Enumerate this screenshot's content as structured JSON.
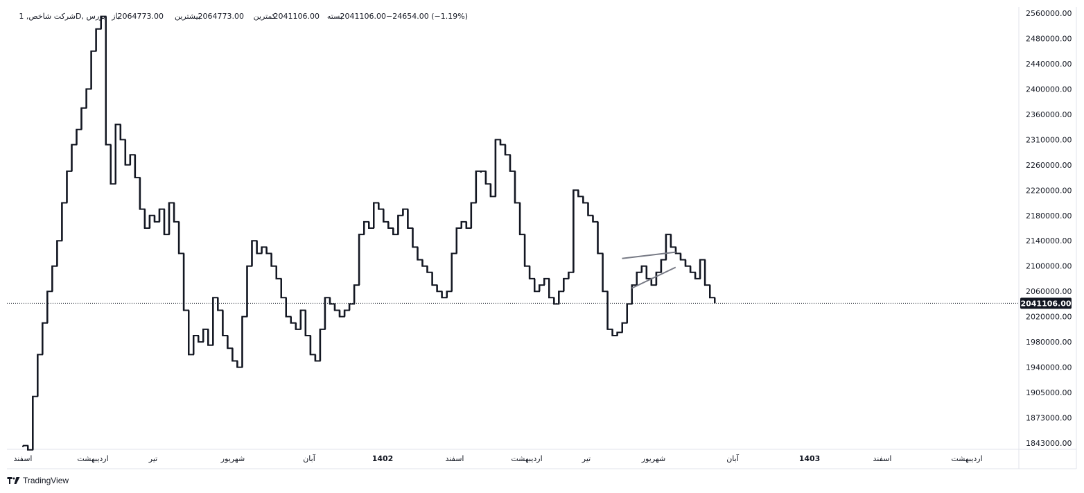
{
  "legend": {
    "symbol": "شرکت شاخص, 1D, بورس",
    "open_label": "باز",
    "open": "2064773.00",
    "high_label": "بیشترین",
    "high": "2064773.00",
    "low_label": "کمترین",
    "low": "2041106.00",
    "close_label": "بسته",
    "close": "2041106.00",
    "change": "−24654.00 (−1.19%)"
  },
  "last_price_label": "2041106.00",
  "brand": {
    "name": "TradingView"
  },
  "colors": {
    "candle": "#131722",
    "trendline": "#787b86",
    "last_price_bg": "#131722",
    "axis_border": "#e0e3eb"
  },
  "chart_data": {
    "type": "line",
    "y_ticks": [
      {
        "value": 1843000,
        "label": "1843000.00"
      },
      {
        "value": 1873000,
        "label": "1873000.00"
      },
      {
        "value": 1905000,
        "label": "1905000.00"
      },
      {
        "value": 1940000,
        "label": "1940000.00"
      },
      {
        "value": 1980000,
        "label": "1980000.00"
      },
      {
        "value": 2020000,
        "label": "2020000.00"
      },
      {
        "value": 2060000,
        "label": "2060000.00"
      },
      {
        "value": 2100000,
        "label": "2100000.00"
      },
      {
        "value": 2140000,
        "label": "2140000.00"
      },
      {
        "value": 2180000,
        "label": "2180000.00"
      },
      {
        "value": 2220000,
        "label": "2220000.00"
      },
      {
        "value": 2260000,
        "label": "2260000.00"
      },
      {
        "value": 2310000,
        "label": "2310000.00"
      },
      {
        "value": 2360000,
        "label": "2360000.00"
      },
      {
        "value": 2400000,
        "label": "2400000.00"
      },
      {
        "value": 2440000,
        "label": "2440000.00"
      },
      {
        "value": 2480000,
        "label": "2480000.00"
      },
      {
        "value": 2560000,
        "label": "2560000.00"
      }
    ],
    "x_labels": [
      {
        "label": "اسفند",
        "bold": false
      },
      {
        "label": "اردیبهشت",
        "bold": false
      },
      {
        "label": "تیر",
        "bold": false
      },
      {
        "label": "شهریور",
        "bold": false
      },
      {
        "label": "آبان",
        "bold": false
      },
      {
        "label": "1402",
        "bold": true
      },
      {
        "label": "اسفند",
        "bold": false
      },
      {
        "label": "اردیبهشت",
        "bold": false
      },
      {
        "label": "تیر",
        "bold": false
      },
      {
        "label": "شهریور",
        "bold": false
      },
      {
        "label": "آبان",
        "bold": false
      },
      {
        "label": "1403",
        "bold": true
      },
      {
        "label": "اسفند",
        "bold": false
      },
      {
        "label": "اردیبهشت",
        "bold": false
      }
    ],
    "last_price": 2041106,
    "price_path": [
      1840000,
      1835000,
      1900000,
      1960000,
      2010000,
      2060000,
      2100000,
      2140000,
      2200000,
      2250000,
      2300000,
      2330000,
      2370000,
      2400000,
      2460000,
      2510000,
      2550000,
      2300000,
      2230000,
      2340000,
      2310000,
      2260000,
      2280000,
      2240000,
      2190000,
      2160000,
      2180000,
      2170000,
      2190000,
      2150000,
      2200000,
      2170000,
      2120000,
      2030000,
      1960000,
      1990000,
      1980000,
      2000000,
      1975000,
      2050000,
      2030000,
      1990000,
      1970000,
      1950000,
      1940000,
      2020000,
      2100000,
      2140000,
      2120000,
      2130000,
      2120000,
      2100000,
      2080000,
      2050000,
      2020000,
      2010000,
      2000000,
      2030000,
      1990000,
      1960000,
      1950000,
      2000000,
      2050000,
      2040000,
      2030000,
      2020000,
      2030000,
      2040000,
      2070000,
      2150000,
      2170000,
      2160000,
      2200000,
      2190000,
      2170000,
      2160000,
      2150000,
      2180000,
      2190000,
      2160000,
      2130000,
      2110000,
      2100000,
      2090000,
      2070000,
      2060000,
      2050000,
      2060000,
      2120000,
      2160000,
      2170000,
      2160000,
      2200000,
      2250000,
      2250000,
      2230000,
      2210000,
      2310000,
      2300000,
      2280000,
      2250000,
      2200000,
      2150000,
      2100000,
      2080000,
      2060000,
      2070000,
      2080000,
      2050000,
      2040000,
      2060000,
      2080000,
      2090000,
      2220000,
      2210000,
      2200000,
      2180000,
      2170000,
      2120000,
      2060000,
      2000000,
      1990000,
      1995000,
      2010000,
      2040000,
      2070000,
      2090000,
      2100000,
      2080000,
      2070000,
      2090000,
      2110000,
      2150000,
      2130000,
      2120000,
      2110000,
      2100000,
      2090000,
      2080000,
      2110000,
      2070000,
      2050000,
      2041106
    ],
    "trendlines": [
      {
        "from": {
          "index": 123,
          "value": 2112000
        },
        "to": {
          "index": 134,
          "value": 2122000
        }
      },
      {
        "from": {
          "index": 125,
          "value": 2065000
        },
        "to": {
          "index": 134,
          "value": 2098000
        }
      }
    ]
  }
}
